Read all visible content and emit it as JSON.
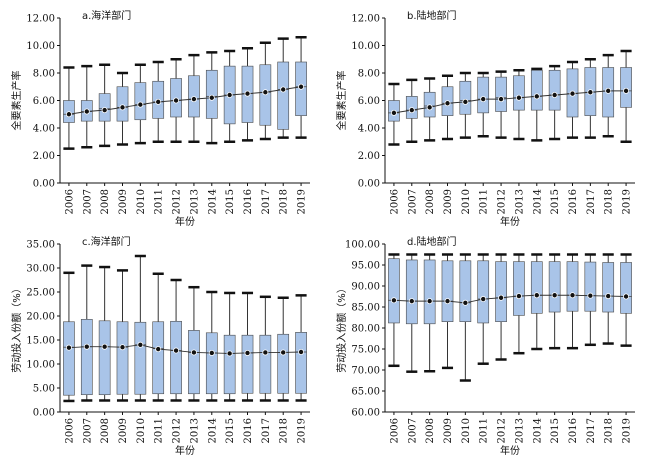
{
  "chart_data": [
    {
      "id": "a",
      "type": "boxplot",
      "title": "a.海洋部门",
      "xlabel": "年份",
      "ylabel": "全要素生产率",
      "ylim": [
        0,
        12
      ],
      "yticks": [
        "0.00",
        "2.00",
        "4.00",
        "6.00",
        "8.00",
        "10.00",
        "12.00"
      ],
      "categories": [
        "2006",
        "2007",
        "2008",
        "2009",
        "2010",
        "2011",
        "2012",
        "2013",
        "2014",
        "2015",
        "2016",
        "2017",
        "2018",
        "2019"
      ],
      "whisker_low": [
        2.5,
        2.6,
        2.7,
        2.8,
        2.9,
        3.0,
        3.0,
        3.0,
        2.9,
        3.0,
        3.1,
        3.2,
        3.3,
        3.3
      ],
      "q1": [
        4.4,
        4.5,
        4.5,
        4.5,
        4.6,
        4.7,
        4.8,
        4.8,
        4.7,
        4.3,
        4.4,
        4.2,
        3.9,
        4.9
      ],
      "median": [
        5.0,
        5.2,
        5.4,
        5.5,
        5.7,
        5.9,
        6.0,
        6.1,
        6.3,
        6.4,
        6.5,
        6.6,
        6.8,
        7.0
      ],
      "q3": [
        6.0,
        6.0,
        6.5,
        7.0,
        7.3,
        7.4,
        7.6,
        7.8,
        8.2,
        8.5,
        8.5,
        8.6,
        8.8,
        8.8
      ],
      "whisker_high": [
        8.4,
        8.5,
        8.6,
        8.0,
        8.6,
        8.8,
        9.0,
        9.3,
        9.5,
        9.6,
        9.8,
        10.2,
        10.5,
        10.6
      ],
      "mean": [
        5.0,
        5.2,
        5.3,
        5.5,
        5.7,
        5.9,
        6.0,
        6.1,
        6.2,
        6.4,
        6.5,
        6.6,
        6.8,
        7.0
      ]
    },
    {
      "id": "b",
      "type": "boxplot",
      "title": "b.陆地部门",
      "xlabel": "年份",
      "ylabel": "全要素生产率",
      "ylim": [
        0,
        12
      ],
      "yticks": [
        "0.00",
        "2.00",
        "4.00",
        "6.00",
        "8.00",
        "10.00",
        "12.00"
      ],
      "categories": [
        "2006",
        "2007",
        "2008",
        "2009",
        "2010",
        "2011",
        "2012",
        "2013",
        "2014",
        "2015",
        "2016",
        "2017",
        "2018",
        "2019"
      ],
      "whisker_low": [
        2.8,
        3.0,
        3.1,
        3.2,
        3.3,
        3.4,
        3.3,
        3.2,
        3.1,
        3.2,
        3.3,
        3.3,
        3.4,
        3.0
      ],
      "q1": [
        4.5,
        4.7,
        4.8,
        4.9,
        5.0,
        5.1,
        5.2,
        5.3,
        5.3,
        5.3,
        4.8,
        4.9,
        4.8,
        5.5
      ],
      "median": [
        5.1,
        5.3,
        5.6,
        5.8,
        6.0,
        6.1,
        6.2,
        6.2,
        6.3,
        6.4,
        6.5,
        6.6,
        6.7,
        6.7
      ],
      "q3": [
        6.0,
        6.3,
        6.6,
        7.0,
        7.4,
        7.7,
        7.7,
        7.8,
        8.2,
        8.2,
        8.3,
        8.4,
        8.4,
        8.4
      ],
      "whisker_high": [
        7.2,
        7.5,
        7.6,
        7.8,
        8.0,
        8.0,
        8.1,
        8.2,
        8.3,
        8.5,
        8.8,
        9.0,
        9.3,
        9.6
      ],
      "mean": [
        5.1,
        5.3,
        5.5,
        5.8,
        5.9,
        6.1,
        6.1,
        6.2,
        6.3,
        6.4,
        6.5,
        6.6,
        6.7,
        6.7
      ]
    },
    {
      "id": "c",
      "type": "boxplot",
      "title": "c.海洋部门",
      "xlabel": "年份",
      "ylabel": "劳动投入份额（%）",
      "ylim": [
        0,
        35
      ],
      "yticks": [
        "0.00",
        "5.00",
        "10.00",
        "15.00",
        "20.00",
        "25.00",
        "30.00",
        "35.00"
      ],
      "categories": [
        "2006",
        "2007",
        "2008",
        "2009",
        "2010",
        "2011",
        "2012",
        "2013",
        "2014",
        "2015",
        "2016",
        "2017",
        "2018",
        "2019"
      ],
      "whisker_low": [
        2.3,
        2.4,
        2.4,
        2.4,
        2.4,
        2.4,
        2.4,
        2.4,
        2.4,
        2.4,
        2.4,
        2.4,
        2.4,
        2.4
      ],
      "q1": [
        3.5,
        3.6,
        3.6,
        3.7,
        3.7,
        3.8,
        3.8,
        3.8,
        3.8,
        3.8,
        3.9,
        3.9,
        3.9,
        3.9
      ],
      "median": [
        13.5,
        13.6,
        13.6,
        13.5,
        14.0,
        13.2,
        12.8,
        12.4,
        12.3,
        12.2,
        12.3,
        12.4,
        12.4,
        12.5
      ],
      "q3": [
        18.8,
        19.3,
        19.0,
        18.8,
        18.7,
        18.8,
        18.9,
        17.0,
        16.5,
        16.0,
        16.0,
        16.0,
        16.2,
        16.6
      ],
      "whisker_high": [
        29.0,
        30.5,
        30.2,
        29.5,
        32.5,
        28.8,
        27.5,
        26.0,
        25.0,
        24.8,
        24.8,
        24.0,
        23.8,
        24.3
      ],
      "mean": [
        13.4,
        13.6,
        13.6,
        13.5,
        14.0,
        13.1,
        12.8,
        12.4,
        12.3,
        12.2,
        12.3,
        12.4,
        12.4,
        12.5
      ]
    },
    {
      "id": "d",
      "type": "boxplot",
      "title": "d.陆地部门",
      "xlabel": "年份",
      "ylabel": "劳动投入份额（%）",
      "ylim": [
        60,
        100
      ],
      "yticks": [
        "60.00",
        "65.00",
        "70.00",
        "75.00",
        "80.00",
        "85.00",
        "90.00",
        "95.00",
        "100.00"
      ],
      "categories": [
        "2006",
        "2007",
        "2008",
        "2009",
        "2010",
        "2011",
        "2012",
        "2013",
        "2014",
        "2015",
        "2016",
        "2017",
        "2018",
        "2019"
      ],
      "whisker_low": [
        71.0,
        69.6,
        69.7,
        70.5,
        67.5,
        71.5,
        72.5,
        74.0,
        75.0,
        75.2,
        75.2,
        76.0,
        76.3,
        75.8
      ],
      "q1": [
        81.2,
        81.0,
        81.0,
        81.5,
        81.5,
        81.2,
        81.5,
        83.0,
        83.5,
        83.8,
        84.0,
        84.0,
        83.8,
        83.5
      ],
      "median": [
        86.6,
        86.4,
        86.4,
        86.4,
        86.0,
        86.9,
        87.2,
        87.6,
        87.8,
        87.8,
        87.8,
        87.7,
        87.6,
        87.5
      ],
      "q3": [
        96.5,
        96.2,
        96.2,
        96.0,
        96.0,
        96.0,
        95.8,
        95.8,
        95.8,
        95.8,
        95.8,
        95.7,
        95.6,
        95.6
      ],
      "whisker_high": [
        97.5,
        97.5,
        97.5,
        97.5,
        97.5,
        97.5,
        97.5,
        97.5,
        97.5,
        97.5,
        97.5,
        97.5,
        97.5,
        97.5
      ],
      "mean": [
        86.6,
        86.4,
        86.4,
        86.4,
        86.0,
        86.9,
        87.2,
        87.6,
        87.8,
        87.8,
        87.8,
        87.7,
        87.6,
        87.5
      ]
    }
  ],
  "style": {
    "box_fill": "#a9c4e8",
    "box_stroke": "#4a4a4a",
    "whisker_color": "#333333",
    "mean_line": "#333333",
    "mean_marker": "#111111",
    "axis_color": "#111111"
  }
}
